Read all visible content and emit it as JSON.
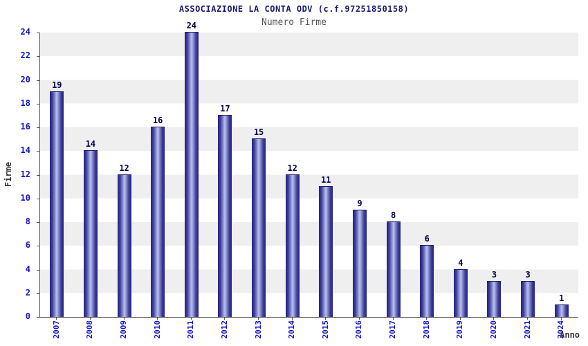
{
  "chart_data": {
    "type": "bar",
    "title": "ASSOCIAZIONE LA CONTA ODV (c.f.97251850158)",
    "subtitle": "Numero Firme",
    "xlabel": "Anno",
    "ylabel": "Firme",
    "categories": [
      "2007",
      "2008",
      "2009",
      "2010",
      "2011",
      "2012",
      "2013",
      "2014",
      "2015",
      "2016",
      "2017",
      "2018",
      "2019",
      "2020",
      "2021",
      "2024"
    ],
    "values": [
      19,
      14,
      12,
      16,
      24,
      17,
      15,
      12,
      11,
      9,
      8,
      6,
      4,
      3,
      3,
      1
    ],
    "ylim": [
      0,
      24
    ],
    "ytick_step": 2,
    "grid": "horizontal-bands",
    "legend": "none",
    "colors": {
      "bar_edge": "#23237e",
      "bar_mid": "#b9c2ee",
      "tick_label": "#1414c8",
      "value_label": "#00004f",
      "title": "#191970",
      "subtitle": "#555555",
      "band": "#efefef",
      "axis_line": "#555555"
    }
  }
}
